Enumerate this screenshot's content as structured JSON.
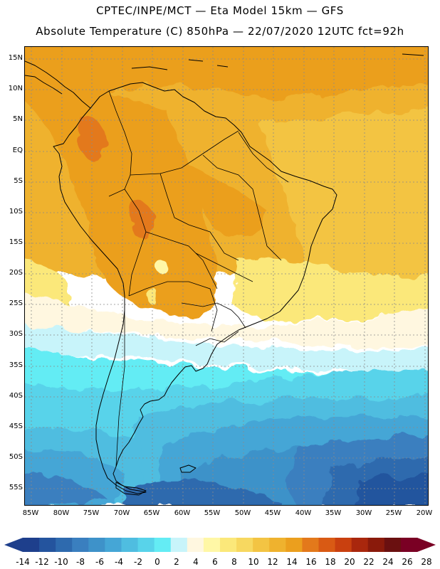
{
  "header": {
    "title_line1": "CPTEC/INPE/MCT —  Eta Model 15km — GFS",
    "title_line2": "Absolute Temperature (C) 850hPa — 22/07/2020 12UTC fct=92h"
  },
  "map": {
    "lat_labels": [
      "15N",
      "10N",
      "5N",
      "EQ",
      "5S",
      "10S",
      "15S",
      "20S",
      "25S",
      "30S",
      "35S",
      "40S",
      "45S",
      "50S",
      "55S"
    ],
    "lon_labels": [
      "85W",
      "80W",
      "75W",
      "70W",
      "65W",
      "60W",
      "55W",
      "50W",
      "45W",
      "40W",
      "35W",
      "30W",
      "25W",
      "20W"
    ]
  },
  "colorbar": {
    "labels": [
      "-14",
      "-12",
      "-10",
      "-8",
      "-6",
      "-4",
      "-2",
      "0",
      "2",
      "4",
      "6",
      "8",
      "10",
      "12",
      "14",
      "16",
      "18",
      "20",
      "22",
      "24",
      "26",
      "28"
    ],
    "colors": [
      "#1e3f8c",
      "#24549e",
      "#2e6aae",
      "#3a7fbf",
      "#3e92c9",
      "#45a6d6",
      "#4fbde0",
      "#58d3ea",
      "#64ecf4",
      "#c8f4fa",
      "#fff7e0",
      "#fff7a6",
      "#fbe87a",
      "#f7d860",
      "#f3c443",
      "#efb22e",
      "#eb9f1e",
      "#e3791b",
      "#d95a14",
      "#c9400f",
      "#a9270d",
      "#8a1a0b",
      "#6a1010",
      "#7a0024"
    ]
  }
}
